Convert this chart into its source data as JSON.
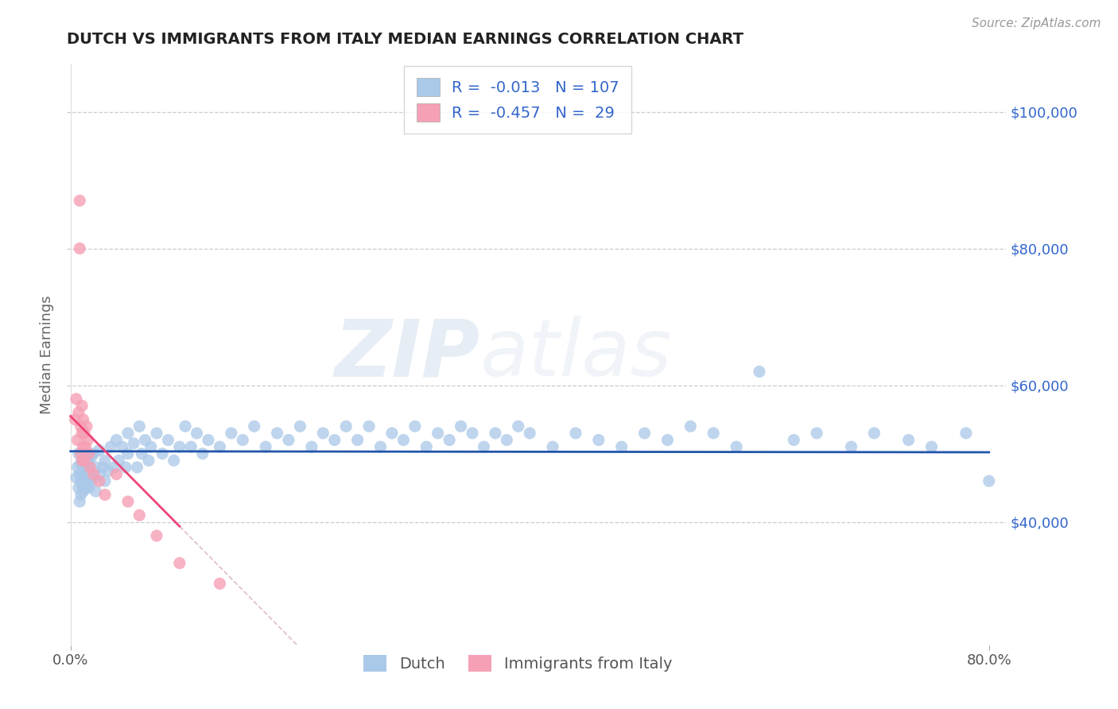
{
  "title": "DUTCH VS IMMIGRANTS FROM ITALY MEDIAN EARNINGS CORRELATION CHART",
  "source_text": "Source: ZipAtlas.com",
  "watermark_part1": "ZIP",
  "watermark_part2": "atlas",
  "ylabel": "Median Earnings",
  "xmin": -0.003,
  "xmax": 0.815,
  "ymin": 22000,
  "ymax": 107000,
  "ytick_vals": [
    40000,
    60000,
    80000,
    100000
  ],
  "ytick_labels": [
    "$40,000",
    "$60,000",
    "$80,000",
    "$100,000"
  ],
  "dutch_color": "#aac8e8",
  "italy_color": "#f5a0b5",
  "trend_dutch_color": "#2255aa",
  "trend_italy_color": "#ee4477",
  "trend_ext_color": "#ddbbcc",
  "R_dutch": -0.013,
  "N_dutch": 107,
  "R_italy": -0.457,
  "N_italy": 29,
  "legend_label_dutch": "Dutch",
  "legend_label_italy": "Immigrants from Italy",
  "background_color": "#ffffff",
  "grid_color": "#cccccc",
  "title_color": "#222222",
  "label_color": "#3366cc",
  "source_color": "#999999",
  "dutch_x": [
    0.005,
    0.006,
    0.007,
    0.007,
    0.008,
    0.008,
    0.009,
    0.009,
    0.009,
    0.01,
    0.01,
    0.01,
    0.011,
    0.011,
    0.012,
    0.012,
    0.013,
    0.013,
    0.014,
    0.015,
    0.015,
    0.016,
    0.016,
    0.017,
    0.018,
    0.018,
    0.02,
    0.02,
    0.022,
    0.022,
    0.025,
    0.025,
    0.028,
    0.03,
    0.03,
    0.033,
    0.035,
    0.038,
    0.04,
    0.042,
    0.045,
    0.048,
    0.05,
    0.05,
    0.055,
    0.058,
    0.06,
    0.062,
    0.065,
    0.068,
    0.07,
    0.075,
    0.08,
    0.085,
    0.09,
    0.095,
    0.1,
    0.105,
    0.11,
    0.115,
    0.12,
    0.13,
    0.14,
    0.15,
    0.16,
    0.17,
    0.18,
    0.19,
    0.2,
    0.21,
    0.22,
    0.23,
    0.24,
    0.25,
    0.26,
    0.27,
    0.28,
    0.29,
    0.3,
    0.31,
    0.32,
    0.33,
    0.34,
    0.35,
    0.36,
    0.37,
    0.38,
    0.39,
    0.4,
    0.42,
    0.44,
    0.46,
    0.48,
    0.5,
    0.52,
    0.54,
    0.56,
    0.58,
    0.6,
    0.63,
    0.65,
    0.68,
    0.7,
    0.73,
    0.75,
    0.78,
    0.8
  ],
  "dutch_y": [
    46500,
    48000,
    45000,
    50000,
    47000,
    43000,
    46000,
    48500,
    44000,
    47000,
    49000,
    45500,
    48000,
    44500,
    46500,
    50000,
    48000,
    45000,
    47000,
    49000,
    46000,
    48500,
    45000,
    47000,
    49500,
    46000,
    50000,
    46500,
    48000,
    44500,
    47000,
    50500,
    48000,
    46000,
    49000,
    47500,
    51000,
    48000,
    52000,
    49000,
    51000,
    48000,
    53000,
    50000,
    51500,
    48000,
    54000,
    50000,
    52000,
    49000,
    51000,
    53000,
    50000,
    52000,
    49000,
    51000,
    54000,
    51000,
    53000,
    50000,
    52000,
    51000,
    53000,
    52000,
    54000,
    51000,
    53000,
    52000,
    54000,
    51000,
    53000,
    52000,
    54000,
    52000,
    54000,
    51000,
    53000,
    52000,
    54000,
    51000,
    53000,
    52000,
    54000,
    53000,
    51000,
    53000,
    52000,
    54000,
    53000,
    51000,
    53000,
    52000,
    51000,
    53000,
    52000,
    54000,
    53000,
    51000,
    62000,
    52000,
    53000,
    51000,
    53000,
    52000,
    51000,
    53000,
    46000
  ],
  "italy_x": [
    0.004,
    0.005,
    0.006,
    0.007,
    0.008,
    0.008,
    0.009,
    0.009,
    0.01,
    0.01,
    0.01,
    0.011,
    0.011,
    0.012,
    0.012,
    0.013,
    0.014,
    0.015,
    0.016,
    0.017,
    0.02,
    0.025,
    0.03,
    0.04,
    0.05,
    0.06,
    0.075,
    0.095,
    0.13
  ],
  "italy_y": [
    55000,
    58000,
    52000,
    56000,
    87000,
    80000,
    54000,
    50000,
    57000,
    53000,
    49000,
    55000,
    51000,
    53000,
    49000,
    51000,
    54000,
    52000,
    50000,
    48000,
    47000,
    46000,
    44000,
    47000,
    43000,
    41000,
    38000,
    34000,
    31000
  ],
  "trend_italy_x_start": 0.0,
  "trend_italy_x_solid_end": 0.095,
  "trend_italy_x_ext_end": 0.38,
  "trend_dutch_x_start": 0.0,
  "trend_dutch_x_end": 0.8
}
